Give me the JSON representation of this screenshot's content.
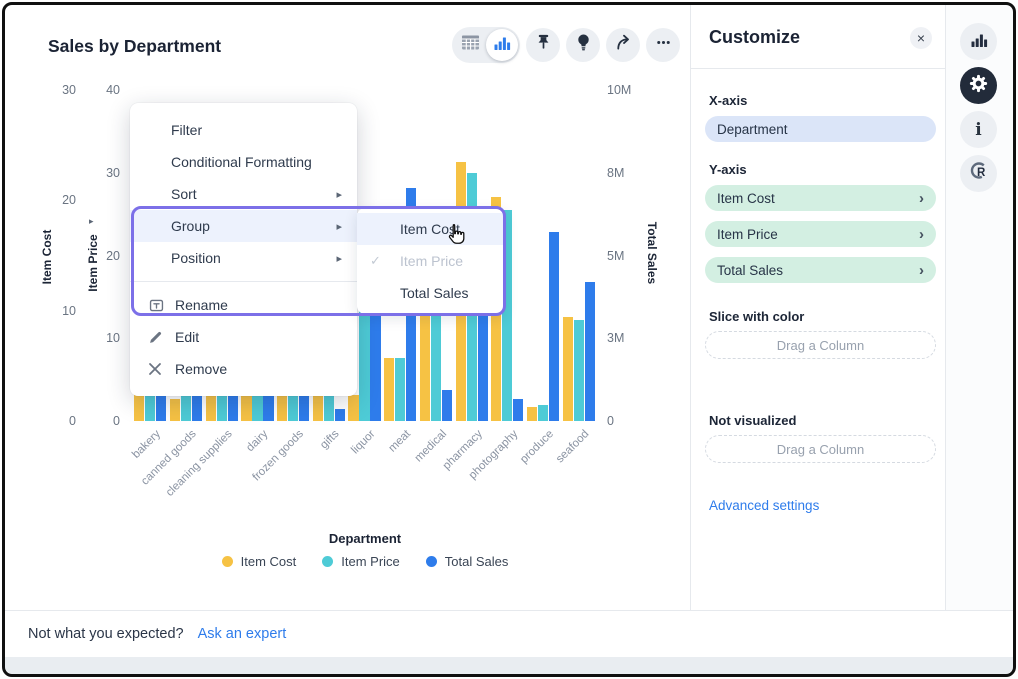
{
  "window_title": "Sales by Department",
  "toolbar": {
    "view_toggle": {
      "options": [
        "table-view",
        "chart-view"
      ],
      "selected": "chart-view"
    },
    "buttons": [
      "pin",
      "insights",
      "share",
      "more"
    ]
  },
  "context_menu": {
    "items": [
      {
        "label": "Filter"
      },
      {
        "label": "Conditional Formatting"
      },
      {
        "label": "Sort",
        "submenu_arrow": true
      },
      {
        "label": "Group",
        "submenu_arrow": true,
        "highlighted": true
      },
      {
        "label": "Position",
        "submenu_arrow": true
      },
      {
        "divider": true
      },
      {
        "label": "Rename",
        "icon": "rename"
      },
      {
        "label": "Edit",
        "icon": "edit"
      },
      {
        "label": "Remove",
        "icon": "remove"
      }
    ]
  },
  "submenu": {
    "items": [
      {
        "label": "Item Cost",
        "highlighted": true
      },
      {
        "label": "Item Price",
        "checked": true,
        "disabled": true
      },
      {
        "label": "Total Sales"
      }
    ]
  },
  "customize_panel": {
    "title": "Customize",
    "close_icon": "×",
    "x_axis_label": "X-axis",
    "x_axis_pill": "Department",
    "y_axis_label": "Y-axis",
    "y_axis_pills": [
      "Item Cost",
      "Item Price",
      "Total Sales"
    ],
    "slice_label": "Slice with color",
    "slice_placeholder": "Drag a Column",
    "not_visualized_label": "Not visualized",
    "not_visualized_placeholder": "Drag a Column",
    "advanced_link": "Advanced settings"
  },
  "footer": {
    "text": "Not what you expected?",
    "link": "Ask an expert"
  },
  "colors": {
    "item_cost": "#F6C244",
    "item_price": "#4ECBD6",
    "total_sales": "#2E7CEB",
    "annotation": "#7C70E8",
    "link": "#2E7CEB"
  },
  "chart_data": {
    "type": "bar",
    "title": "Sales by Department",
    "xlabel": "Department",
    "legend_position": "bottom",
    "grid": false,
    "categories": [
      "bakery",
      "canned goods",
      "cleaning supplies",
      "dairy",
      "frozen goods",
      "gifts",
      "liquor",
      "meat",
      "medical",
      "pharmacy",
      "photography",
      "produce",
      "seafood"
    ],
    "axes": {
      "item_cost": {
        "title": "Item Cost",
        "side": "left",
        "range": [
          0,
          30
        ],
        "ticks": [
          {
            "v": 0,
            "label": "0"
          },
          {
            "v": 10,
            "label": "10"
          },
          {
            "v": 20,
            "label": "20"
          },
          {
            "v": 30,
            "label": "30"
          }
        ]
      },
      "item_price": {
        "title": "Item Price",
        "side": "left",
        "range": [
          0,
          40
        ],
        "ticks": [
          {
            "v": 0,
            "label": "0"
          },
          {
            "v": 10,
            "label": "10"
          },
          {
            "v": 20,
            "label": "20"
          },
          {
            "v": 30,
            "label": "30"
          },
          {
            "v": 40,
            "label": "40"
          }
        ]
      },
      "total_sales": {
        "title": "Total Sales",
        "side": "right",
        "range": [
          0,
          10000000
        ],
        "ticks": [
          {
            "v": 0,
            "label": "0"
          },
          {
            "v": 2500000,
            "label": "3M"
          },
          {
            "v": 5000000,
            "label": "5M"
          },
          {
            "v": 7500000,
            "label": "8M"
          },
          {
            "v": 10000000,
            "label": "10M"
          }
        ]
      }
    },
    "series": [
      {
        "name": "Item Cost",
        "axis": "item_cost",
        "color": "#F6C244",
        "values": [
          2.7,
          2.0,
          2.7,
          2.6,
          2.6,
          2.5,
          2.4,
          5.7,
          12.0,
          23.5,
          20.3,
          1.3,
          9.4
        ]
      },
      {
        "name": "Item Price",
        "axis": "item_price",
        "color": "#4ECBD6",
        "values": [
          3.7,
          3.5,
          3.6,
          3.5,
          3.6,
          3.3,
          15.0,
          7.6,
          15.0,
          30.0,
          25.5,
          1.9,
          12.2
        ]
      },
      {
        "name": "Total Sales",
        "axis": "total_sales",
        "color": "#2E7CEB",
        "values": [
          1000000,
          1050000,
          1000000,
          1000000,
          1050000,
          360000,
          4200000,
          7050000,
          950000,
          5000000,
          650000,
          5700000,
          4200000
        ]
      }
    ]
  }
}
